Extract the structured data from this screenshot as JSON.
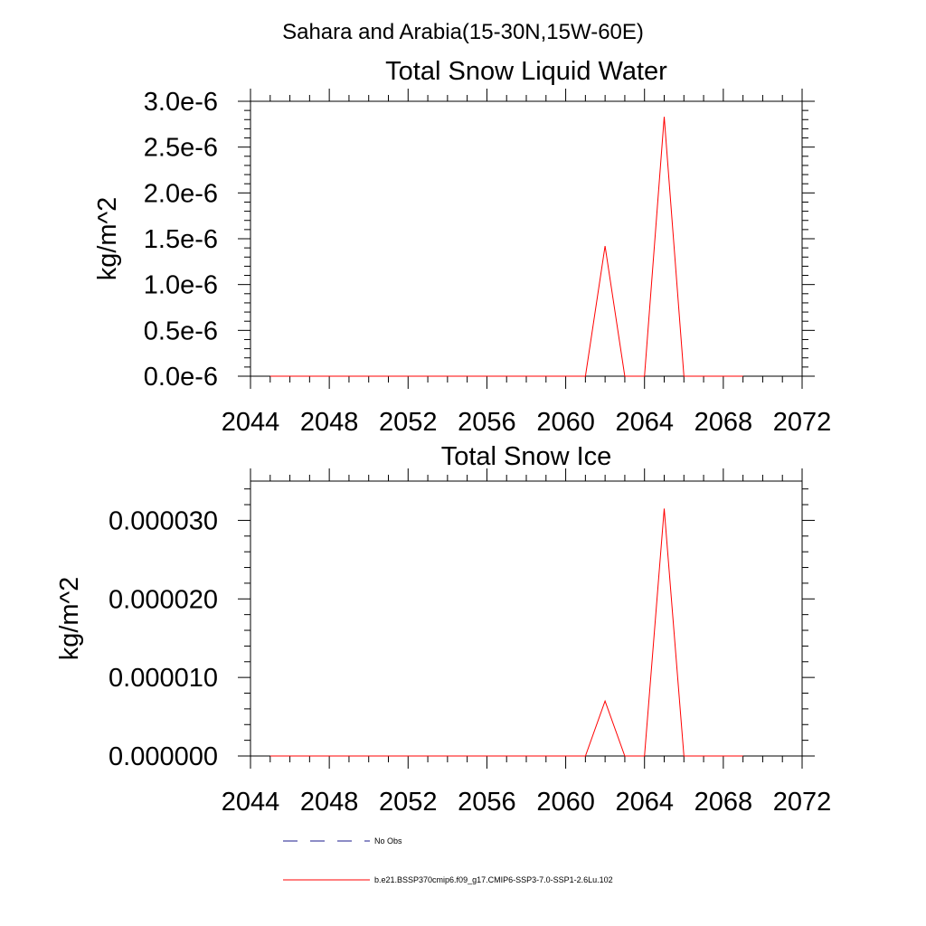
{
  "figure": {
    "title": "Sahara and Arabia(15-30N,15W-60E)"
  },
  "chart_data": [
    {
      "type": "line",
      "title": "Total Snow Liquid Water",
      "xlabel": "",
      "ylabel": "kg/m^2",
      "xlim": [
        2044,
        2072
      ],
      "ylim": [
        0,
        3e-06
      ],
      "x_ticks": [
        2044,
        2048,
        2052,
        2056,
        2060,
        2064,
        2068,
        2072
      ],
      "x_tick_labels": [
        "2044",
        "2048",
        "2052",
        "2056",
        "2060",
        "2064",
        "2068",
        "2072"
      ],
      "y_ticks": [
        0,
        5e-07,
        1e-06,
        1.5e-06,
        2e-06,
        2.5e-06,
        3e-06
      ],
      "y_tick_labels": [
        "0.0e-6",
        "0.5e-6",
        "1.0e-6",
        "1.5e-6",
        "2.0e-6",
        "2.5e-6",
        "3.0e-6"
      ],
      "grid": false,
      "series": [
        {
          "name": "b.e21.BSSP370cmip6.f09_g17.CMIP6-SSP3-7.0-SSP1-2.6Lu.102",
          "color": "#ff0000",
          "x": [
            2045,
            2046,
            2047,
            2048,
            2049,
            2050,
            2051,
            2052,
            2053,
            2054,
            2055,
            2056,
            2057,
            2058,
            2059,
            2060,
            2061,
            2062,
            2063,
            2064,
            2065,
            2066,
            2067,
            2068,
            2069
          ],
          "y": [
            0,
            0,
            0,
            0,
            0,
            0,
            0,
            0,
            0,
            0,
            0,
            0,
            0,
            0,
            0,
            0,
            0,
            1.42e-06,
            0,
            0,
            2.83e-06,
            0,
            0,
            0,
            0
          ]
        }
      ]
    },
    {
      "type": "line",
      "title": "Total Snow Ice",
      "xlabel": "",
      "ylabel": "kg/m^2",
      "xlim": [
        2044,
        2072
      ],
      "ylim": [
        0,
        3.5e-05
      ],
      "x_ticks": [
        2044,
        2048,
        2052,
        2056,
        2060,
        2064,
        2068,
        2072
      ],
      "x_tick_labels": [
        "2044",
        "2048",
        "2052",
        "2056",
        "2060",
        "2064",
        "2068",
        "2072"
      ],
      "y_ticks": [
        0,
        1e-05,
        2e-05,
        3e-05
      ],
      "y_tick_labels": [
        "0.000000",
        "0.000010",
        "0.000020",
        "0.000030"
      ],
      "grid": false,
      "series": [
        {
          "name": "b.e21.BSSP370cmip6.f09_g17.CMIP6-SSP3-7.0-SSP1-2.6Lu.102",
          "color": "#ff0000",
          "x": [
            2045,
            2046,
            2047,
            2048,
            2049,
            2050,
            2051,
            2052,
            2053,
            2054,
            2055,
            2056,
            2057,
            2058,
            2059,
            2060,
            2061,
            2062,
            2063,
            2064,
            2065,
            2066,
            2067,
            2068,
            2069
          ],
          "y": [
            0,
            0,
            0,
            0,
            0,
            0,
            0,
            0,
            0,
            0,
            0,
            0,
            0,
            0,
            0,
            0,
            0,
            7e-06,
            0,
            0,
            3.15e-05,
            0,
            0,
            0,
            0
          ]
        }
      ]
    }
  ],
  "legend": {
    "placement": "bottom",
    "items": [
      {
        "label": "No Obs",
        "color": "#1a1a8c",
        "style": "dashed"
      },
      {
        "label": "b.e21.BSSP370cmip6.f09_g17.CMIP6-SSP3-7.0-SSP1-2.6Lu.102",
        "color": "#ff0000",
        "style": "solid"
      }
    ]
  }
}
